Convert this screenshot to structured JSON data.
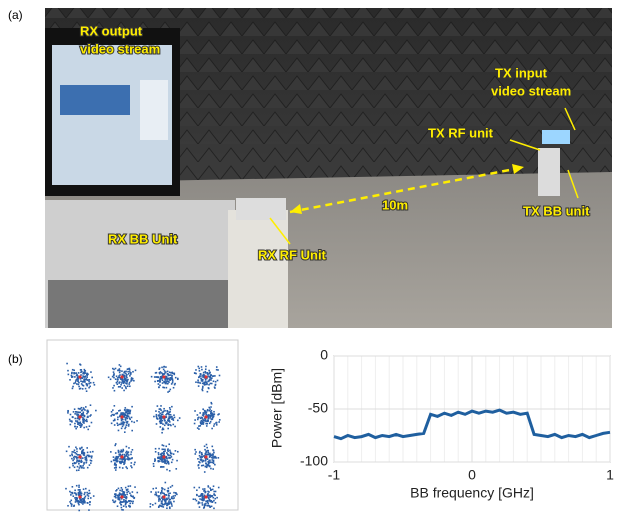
{
  "panel_labels": [
    "(a)",
    "(b)"
  ],
  "photo_labels": [
    {
      "lines": [
        "RX output",
        "video stream"
      ]
    },
    {
      "lines": [
        "TX input",
        "video stream"
      ]
    },
    {
      "lines": [
        "TX RF unit"
      ]
    },
    {
      "lines": [
        "10m"
      ]
    },
    {
      "lines": [
        "TX BB unit"
      ]
    },
    {
      "lines": [
        "RX BB Unit"
      ]
    },
    {
      "lines": [
        "RX RF Unit"
      ]
    }
  ],
  "chart_data": {
    "type": "line",
    "xlabel": "BB frequency [GHz]",
    "ylabel": "Power [dBm]",
    "x": [
      -1,
      -0.95,
      -0.9,
      -0.85,
      -0.8,
      -0.75,
      -0.7,
      -0.65,
      -0.6,
      -0.55,
      -0.5,
      -0.45,
      -0.4,
      -0.35,
      -0.3,
      -0.25,
      -0.2,
      -0.15,
      -0.1,
      -0.05,
      0,
      0.05,
      0.1,
      0.15,
      0.2,
      0.25,
      0.3,
      0.35,
      0.4,
      0.45,
      0.5,
      0.55,
      0.6,
      0.65,
      0.7,
      0.75,
      0.8,
      0.85,
      0.9,
      0.95,
      1
    ],
    "values": [
      -76,
      -78,
      -75,
      -77,
      -76,
      -74,
      -77,
      -75,
      -76,
      -74,
      -76,
      -75,
      -74,
      -73,
      -55,
      -57,
      -54,
      -56,
      -53,
      -55,
      -52,
      -54,
      -52,
      -53,
      -51,
      -54,
      -53,
      -55,
      -54,
      -74,
      -75,
      -76,
      -74,
      -77,
      -75,
      -76,
      -74,
      -77,
      -75,
      -73,
      -72
    ],
    "color": "#1f5f9f",
    "xlim": [
      -1,
      1
    ],
    "ylim": [
      -100,
      0
    ],
    "xticks": [
      -1,
      0,
      1
    ],
    "yticks": [
      0,
      -50,
      -100
    ],
    "grid": true
  }
}
